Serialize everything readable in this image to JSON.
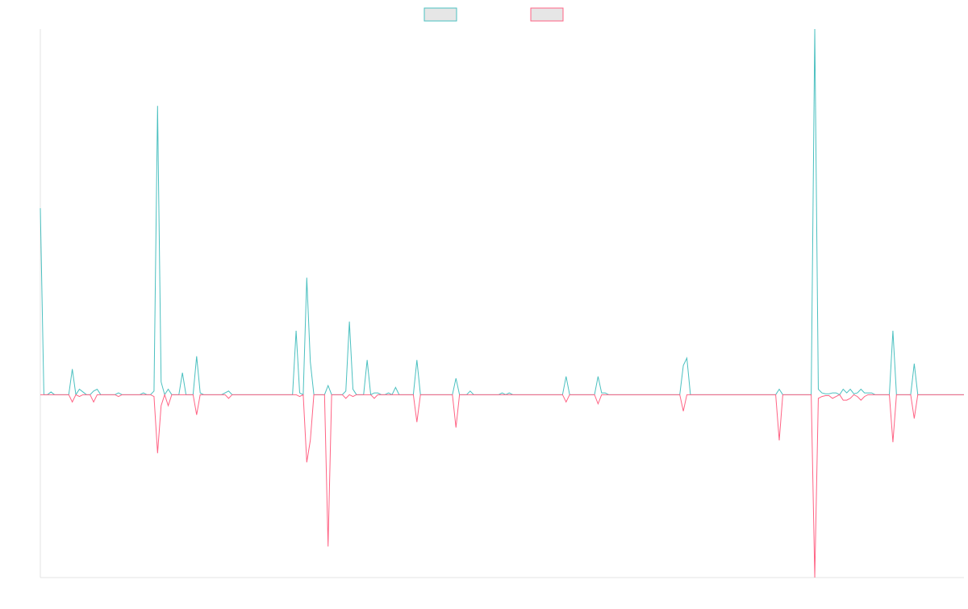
{
  "chart_data": {
    "type": "line",
    "title": "",
    "xlabel": "",
    "ylabel": "",
    "ylim": [
      -100,
      200
    ],
    "grid": false,
    "legend_position": "top-center",
    "x_count": 261,
    "series": [
      {
        "name": "",
        "color": "#4bc0c0",
        "fill": "#e6e6e6",
        "base": 0,
        "spikes": [
          [
            0,
            102
          ],
          [
            3,
            1.5
          ],
          [
            9,
            14
          ],
          [
            11,
            3
          ],
          [
            12,
            1.5
          ],
          [
            15,
            2
          ],
          [
            16,
            3
          ],
          [
            22,
            1
          ],
          [
            29,
            1
          ],
          [
            32,
            2
          ],
          [
            33,
            158
          ],
          [
            34,
            7
          ],
          [
            36,
            3
          ],
          [
            40,
            12
          ],
          [
            44,
            21
          ],
          [
            45,
            1
          ],
          [
            52,
            1
          ],
          [
            53,
            2
          ],
          [
            72,
            35
          ],
          [
            73,
            1
          ],
          [
            75,
            64
          ],
          [
            76,
            18
          ],
          [
            81,
            5
          ],
          [
            86,
            2
          ],
          [
            87,
            40
          ],
          [
            88,
            3
          ],
          [
            92,
            19
          ],
          [
            94,
            1
          ],
          [
            95,
            1
          ],
          [
            98,
            1
          ],
          [
            100,
            4
          ],
          [
            106,
            19
          ],
          [
            117,
            9
          ],
          [
            121,
            2
          ],
          [
            130,
            1
          ],
          [
            132,
            1
          ],
          [
            148,
            10
          ],
          [
            157,
            10
          ],
          [
            158,
            1
          ],
          [
            159,
            1
          ],
          [
            181,
            16
          ],
          [
            182,
            20
          ],
          [
            208,
            3
          ],
          [
            218,
            200
          ],
          [
            219,
            3
          ],
          [
            220,
            1
          ],
          [
            221,
            0.5
          ],
          [
            222,
            0.5
          ],
          [
            223,
            1
          ],
          [
            224,
            1
          ],
          [
            226,
            3
          ],
          [
            227,
            1
          ],
          [
            228,
            3
          ],
          [
            229,
            0.5
          ],
          [
            230,
            1
          ],
          [
            231,
            3
          ],
          [
            232,
            1
          ],
          [
            233,
            1
          ],
          [
            234,
            1
          ],
          [
            240,
            35
          ],
          [
            246,
            17
          ]
        ]
      },
      {
        "name": "",
        "color": "#ff6384",
        "fill": "#e6e6e6",
        "base": 0,
        "spikes": [
          [
            9,
            -4
          ],
          [
            11,
            -1
          ],
          [
            15,
            -4
          ],
          [
            22,
            -1
          ],
          [
            32,
            -1
          ],
          [
            33,
            -32
          ],
          [
            34,
            -6
          ],
          [
            36,
            -6
          ],
          [
            44,
            -11
          ],
          [
            53,
            -2
          ],
          [
            73,
            -1
          ],
          [
            75,
            -37
          ],
          [
            76,
            -25
          ],
          [
            81,
            -83
          ],
          [
            86,
            -2
          ],
          [
            88,
            -1
          ],
          [
            94,
            -2
          ],
          [
            106,
            -15
          ],
          [
            117,
            -18
          ],
          [
            148,
            -4
          ],
          [
            157,
            -5
          ],
          [
            181,
            -9
          ],
          [
            208,
            -25
          ],
          [
            218,
            -100
          ],
          [
            219,
            -2
          ],
          [
            220,
            -1
          ],
          [
            221,
            -0.5
          ],
          [
            222,
            -0.5
          ],
          [
            223,
            -2
          ],
          [
            224,
            -1
          ],
          [
            226,
            -3
          ],
          [
            227,
            -3
          ],
          [
            228,
            -2
          ],
          [
            230,
            -1
          ],
          [
            231,
            -3
          ],
          [
            232,
            -1
          ],
          [
            240,
            -26
          ],
          [
            246,
            -13
          ]
        ]
      }
    ]
  }
}
